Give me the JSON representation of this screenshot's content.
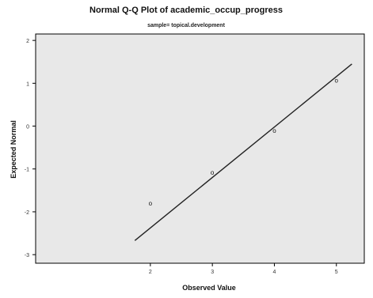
{
  "chart_data": {
    "type": "scatter",
    "title": "Normal Q-Q Plot of academic_occup_progress",
    "subtitle": "sample= topical.development",
    "xlabel": "Observed Value",
    "ylabel": "Expected Normal",
    "xlim": [
      0.15,
      5.45
    ],
    "ylim": [
      -3.2,
      2.15
    ],
    "x_ticks": [
      2,
      3,
      4,
      5
    ],
    "y_ticks": [
      2,
      1,
      0,
      -1,
      -2,
      -3
    ],
    "x_tick_labels": [
      "2",
      "3",
      "4",
      "5"
    ],
    "y_tick_labels": [
      "2",
      "1",
      "0",
      "-1",
      "-2",
      "-3"
    ],
    "points": [
      {
        "x": 2,
        "y": -1.8
      },
      {
        "x": 3,
        "y": -1.08
      },
      {
        "x": 4,
        "y": -0.1
      },
      {
        "x": 5,
        "y": 1.07
      }
    ],
    "reference_line": {
      "x_start": 1.75,
      "y_start": -2.67,
      "x_end": 5.25,
      "y_end": 1.45
    },
    "grid": false,
    "legend": "none",
    "plot_background": "#e8e8e8",
    "frame_color": "#000000",
    "point_marker": "o",
    "colors": {
      "points": "#111111",
      "reference_line": "#222222"
    }
  }
}
